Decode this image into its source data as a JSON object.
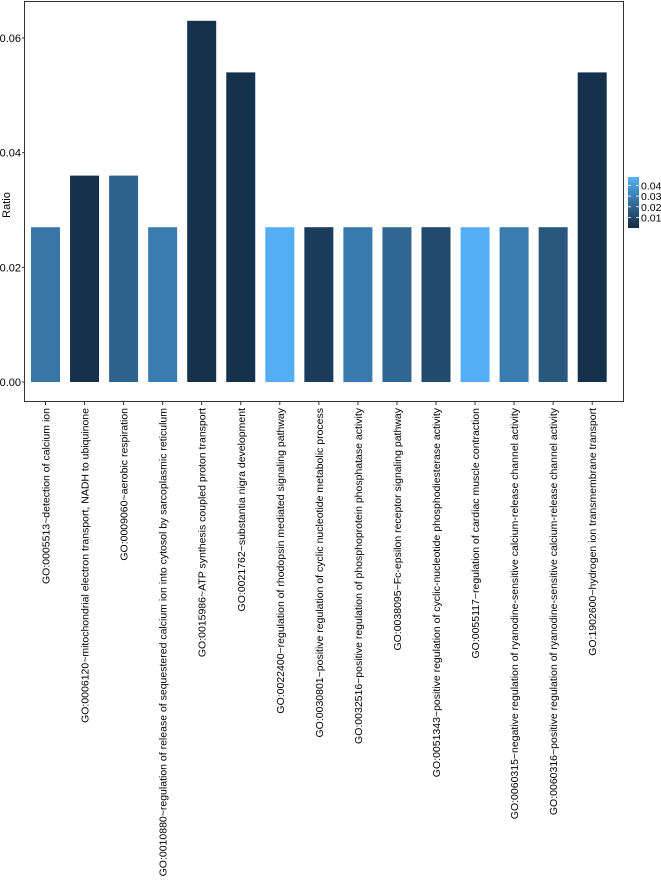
{
  "chart_data": {
    "type": "bar",
    "title": "",
    "xlabel": "",
    "ylabel": "Ratio",
    "ylim": [
      0,
      0.066
    ],
    "yticks": [
      0,
      0.02,
      0.04,
      0.06
    ],
    "ytick_labels": [
      "0.00",
      "0.02",
      "0.04",
      "0.06"
    ],
    "grid": false,
    "legend_position": "right",
    "categories": [
      "GO:0005513~detection of calcium ion",
      "GO:0006120~mitochondrial electron transport, NADH to ubiquinone",
      "GO:0009060~aerobic respiration",
      "GO:0010880~regulation of release of sequestered calcium ion into cytosol by sarcoplasmic reticulum",
      "GO:0015986~ATP synthesis coupled proton transport",
      "GO:0021762~substantia nigra development",
      "GO:0022400~regulation of rhodopsin mediated signaling pathway",
      "GO:0030801~positive regulation of cyclic nucleotide metabolic process",
      "GO:0032516~positive regulation of phosphoprotein phosphatase activity",
      "GO:0038095~Fc-epsilon receptor signaling pathway",
      "GO:0051343~positive regulation of cyclic-nucleotide phosphodiesterase activity",
      "GO:0055117~regulation of cardiac muscle contraction",
      "GO:0060315~negative regulation of ryanodine-sensitive calcium-release channel activity",
      "GO:0060316~positive regulation of ryanodine-sensitive calcium-release channel activity",
      "GO:1902600~hydrogen ion transmembrane transport"
    ],
    "values": [
      0.027,
      0.036,
      0.036,
      0.027,
      0.063,
      0.054,
      0.027,
      0.027,
      0.027,
      0.027,
      0.027,
      0.027,
      0.027,
      0.027,
      0.054
    ],
    "color_values": [
      0.027,
      0.002,
      0.02,
      0.029,
      0.002,
      0.002,
      0.047,
      0.006,
      0.028,
      0.021,
      0.011,
      0.047,
      0.029,
      0.016,
      0.002
    ],
    "color_scale": {
      "low_value": 0.0,
      "high_value": 0.048,
      "low_color": "#132b43",
      "high_color": "#56b1f7"
    },
    "legend": {
      "title": "",
      "ticks": [
        0.04,
        0.03,
        0.02,
        0.01
      ],
      "tick_labels": [
        "0.04",
        "0.03",
        "0.02",
        "0.01"
      ]
    }
  }
}
